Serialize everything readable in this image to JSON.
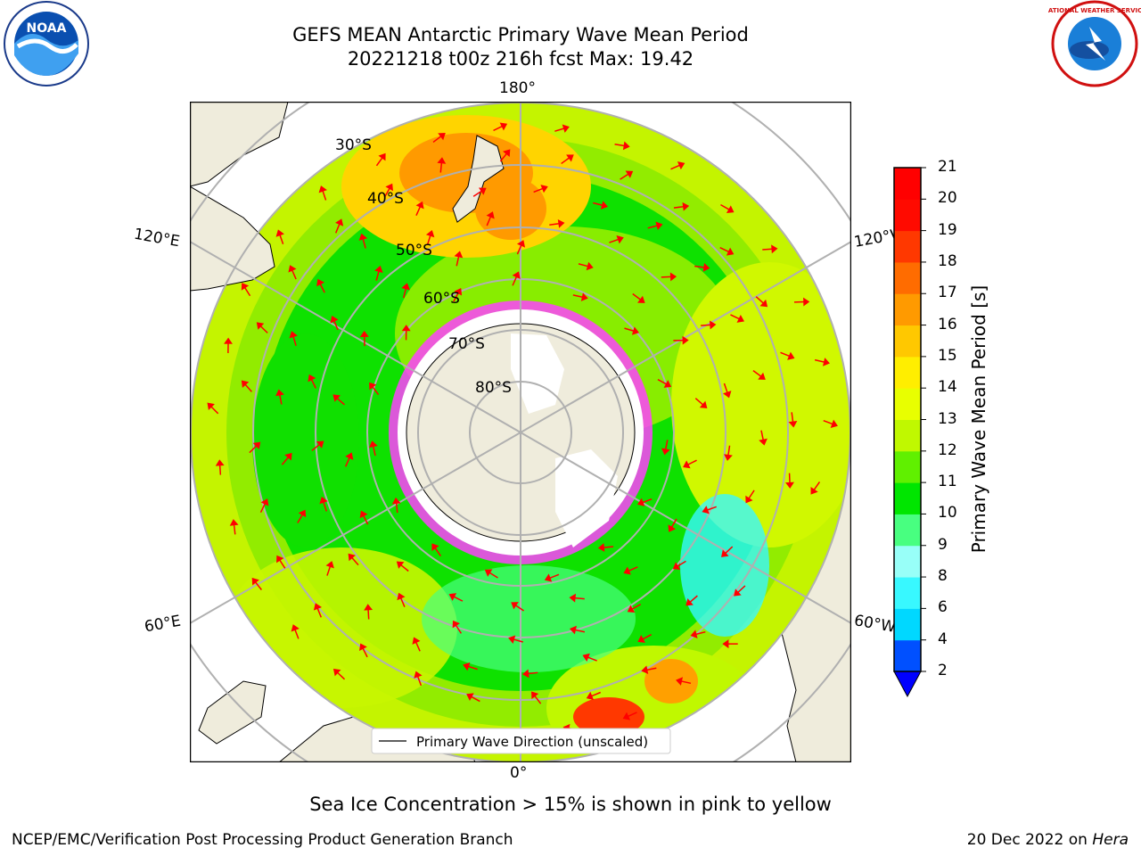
{
  "header": {
    "title": "GEFS MEAN Antarctic Primary Wave Mean Period",
    "subtitle": "20221218 t00z 216h fcst   Max: 19.42"
  },
  "logos": {
    "noaa_text": "NOAA",
    "nws_text": "NATIONAL WEATHER SERVICE"
  },
  "map": {
    "longitude_labels": {
      "top": "180°",
      "bottom": "0°",
      "upper_left": "120°E",
      "upper_right": "120°W",
      "lower_left": "60°E",
      "lower_right": "60°W"
    },
    "latitude_labels": [
      "30°S",
      "40°S",
      "50°S",
      "60°S",
      "70°S",
      "80°S"
    ],
    "legend_label": "Primary Wave Direction (unscaled)",
    "colors": {
      "land": "#efecdc",
      "ice": "#ffffff",
      "grid": "#b0b0b0",
      "arrow": "#ff0000"
    }
  },
  "colorbar": {
    "title": "Primary Wave Mean Period [s]",
    "ticks": [
      "2",
      "4",
      "6",
      "8",
      "9",
      "10",
      "11",
      "12",
      "13",
      "14",
      "15",
      "16",
      "17",
      "18",
      "19",
      "20",
      "21"
    ],
    "colors": [
      "#0050ff",
      "#00d8ff",
      "#38f8ff",
      "#98fff8",
      "#48ff80",
      "#00e600",
      "#60f000",
      "#c0f800",
      "#e8ff00",
      "#ffee00",
      "#ffc800",
      "#ff9a00",
      "#ff6c00",
      "#ff3800",
      "#ff0a00",
      "#ff0000"
    ],
    "extend_color": "#0000ff"
  },
  "caption": "Sea Ice Concentration > 15% is shown in pink to yellow",
  "footer": {
    "left": "NCEP/EMC/Verification Post Processing Product Generation Branch",
    "right_date": "20 Dec 2022 on ",
    "right_host": "Hera"
  }
}
